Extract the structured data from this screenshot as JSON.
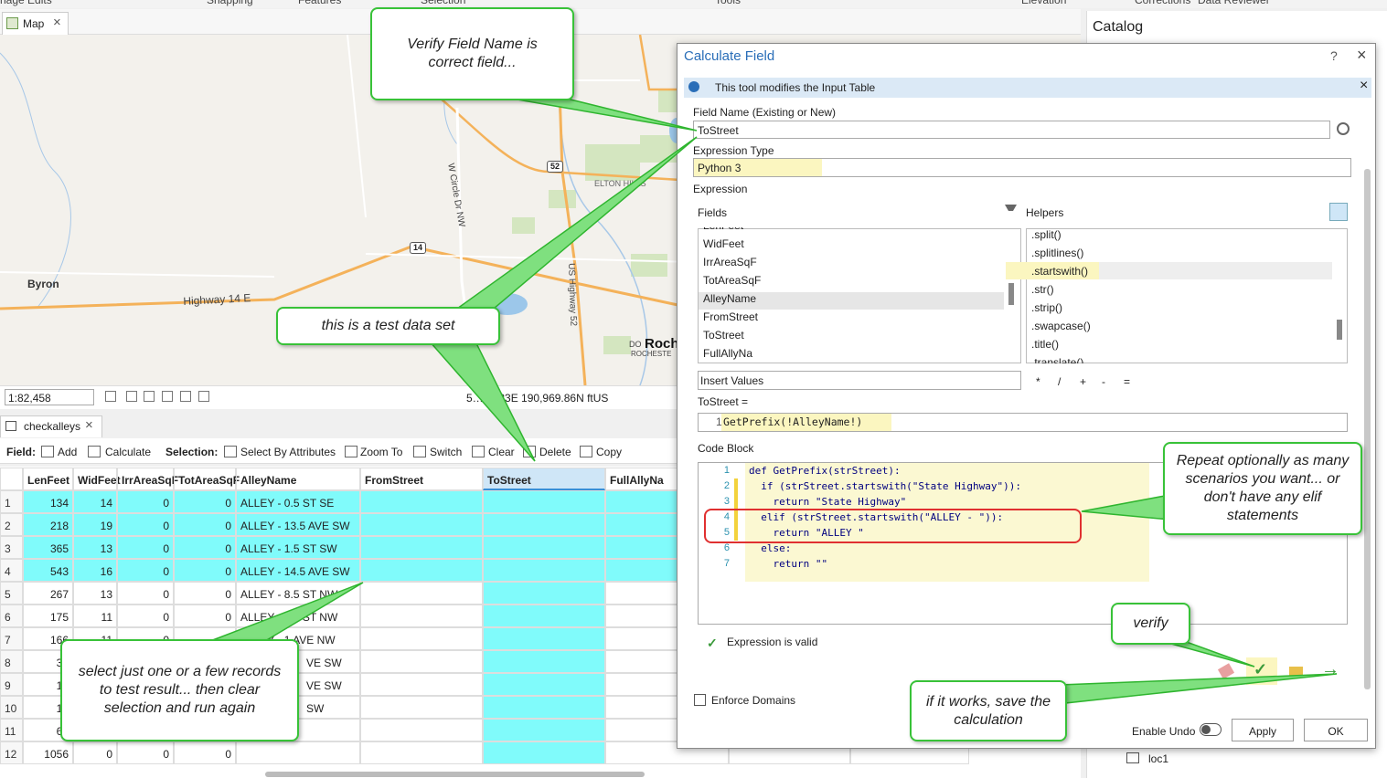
{
  "ribbon": [
    "nage Edits",
    "Snapping",
    "Features",
    "Selection",
    "Tools",
    "Elevation",
    "Corrections",
    "Data Reviewer"
  ],
  "map": {
    "tab": "Map",
    "labels": [
      "Byron",
      "Highway 14 E",
      "W Circle Dr NW",
      "US Highway 52",
      "ELTON HILLS",
      "Roch",
      "DO",
      "ROCHESTE"
    ],
    "shields": [
      "52",
      "14"
    ],
    "scale": "1:82,458",
    "coords": "5…22.23E 190,969.86N ftUS"
  },
  "table": {
    "tab": "checkalleys",
    "field_label": "Field:",
    "field_buttons": [
      "Add",
      "Calculate"
    ],
    "selection_label": "Selection:",
    "selection_buttons": [
      "Select By Attributes",
      "Zoom To",
      "Switch",
      "Clear",
      "Delete",
      "Copy"
    ],
    "columns": [
      "LenFeet",
      "WidFeet",
      "IrrAreaSqF",
      "TotAreaSqF",
      "AlleyName",
      "FromStreet",
      "ToStreet",
      "FullAllyNa"
    ],
    "rows": [
      [
        "1",
        "134",
        "14",
        "0",
        "0",
        "ALLEY - 0.5 ST SE"
      ],
      [
        "2",
        "218",
        "19",
        "0",
        "0",
        "ALLEY - 13.5 AVE SW"
      ],
      [
        "3",
        "365",
        "13",
        "0",
        "0",
        "ALLEY - 1.5 ST SW"
      ],
      [
        "4",
        "543",
        "16",
        "0",
        "0",
        "ALLEY - 14.5 AVE SW"
      ],
      [
        "5",
        "267",
        "13",
        "0",
        "0",
        "ALLEY - 8.5 ST NW"
      ],
      [
        "6",
        "175",
        "11",
        "0",
        "0",
        "ALLEY - 9.5 ST NW"
      ],
      [
        "7",
        "166",
        "11",
        "0",
        null,
        "ALLEY - 1 AVE NW"
      ],
      [
        "8",
        "33",
        null,
        null,
        null,
        "VE SW"
      ],
      [
        "9",
        "17",
        null,
        null,
        null,
        "VE SW"
      ],
      [
        "10",
        "13",
        null,
        null,
        null,
        "SW"
      ],
      [
        "11",
        "63",
        null,
        null,
        null,
        null
      ],
      [
        "12",
        "1056",
        "0",
        "0",
        "0",
        null
      ]
    ]
  },
  "catalog": {
    "title": "Catalog",
    "item": "loc1"
  },
  "dialog": {
    "title": "Calculate Field",
    "help": "?",
    "info": "This tool modifies the Input Table",
    "field_name_label": "Field Name (Existing or New)",
    "field_name": "ToStreet",
    "expression_type_label": "Expression Type",
    "expression_type": "Python 3",
    "expression_label": "Expression",
    "fields_label": "Fields",
    "helpers_label": "Helpers",
    "fields": [
      "LenFeet",
      "WidFeet",
      "IrrAreaSqF",
      "TotAreaSqF",
      "AlleyName",
      "FromStreet",
      "ToStreet",
      "FullAllyNa"
    ],
    "helpers": [
      ".split()",
      ".splitlines()",
      ".startswith()",
      ".str()",
      ".strip()",
      ".swapcase()",
      ".title()",
      ".translate()"
    ],
    "insert_values": "Insert Values",
    "operators": [
      "*",
      "/",
      "+",
      "-",
      "="
    ],
    "expression_target": "ToStreet =",
    "expression_line": "1",
    "expression": "GetPrefix(!AlleyName!)",
    "code_block_label": "Code Block",
    "code": [
      {
        "n": "1",
        "t": "def GetPrefix(strStreet):"
      },
      {
        "n": "2",
        "t": "  if (strStreet.startswith(\"State Highway\")):"
      },
      {
        "n": "3",
        "t": "    return \"State Highway\""
      },
      {
        "n": "4",
        "t": "  elif (strStreet.startswith(\"ALLEY - \")):"
      },
      {
        "n": "5",
        "t": "    return \"ALLEY \""
      },
      {
        "n": "6",
        "t": "  else:"
      },
      {
        "n": "7",
        "t": "    return \"\""
      }
    ],
    "valid": "Expression is valid",
    "enforce_domains": "Enforce Domains",
    "enable_undo": "Enable Undo",
    "apply": "Apply",
    "ok": "OK"
  },
  "callouts": [
    "Verify Field Name is correct field...",
    "this is a test data set",
    "select just one or a few records to test result... then clear selection and run again",
    "Repeat optionally as many scenarios you want... or don't have any elif statements",
    "verify",
    "if it works, save the calculation"
  ]
}
